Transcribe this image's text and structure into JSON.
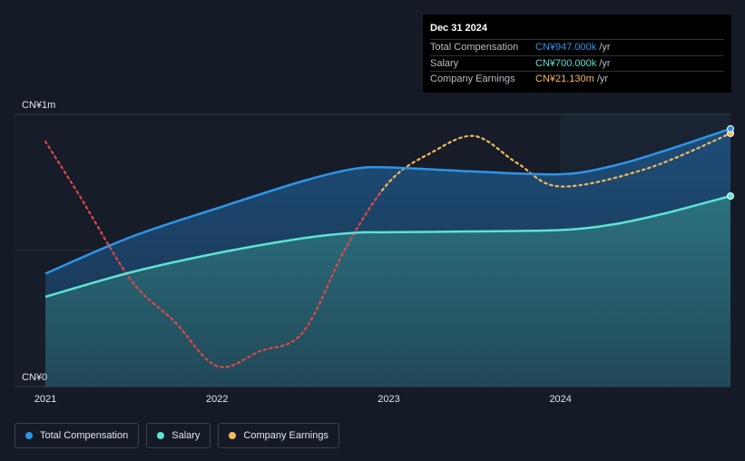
{
  "tooltip": {
    "date": "Dec 31 2024",
    "rows": [
      {
        "label": "Total Compensation",
        "value": "CN¥947.000k",
        "unit": "/yr",
        "color": "#2d95e8"
      },
      {
        "label": "Salary",
        "value": "CN¥700.000k",
        "unit": "/yr",
        "color": "#5ce3d4"
      },
      {
        "label": "Company Earnings",
        "value": "CN¥21.130m",
        "unit": "/yr",
        "color": "#f5b95a"
      }
    ]
  },
  "legend": [
    {
      "label": "Total Compensation",
      "color": "#2d95e8"
    },
    {
      "label": "Salary",
      "color": "#5ce3d4"
    },
    {
      "label": "Company Earnings",
      "color": "#f5b95a"
    }
  ],
  "chart_data": {
    "type": "line",
    "y_ticks": [
      {
        "value": 1000,
        "label": "CN¥1m"
      },
      {
        "value": 0,
        "label": "CN¥0"
      }
    ],
    "x_ticks": [
      {
        "value": 2021.0,
        "label": "2021"
      },
      {
        "value": 2022.0,
        "label": "2022"
      },
      {
        "value": 2023.0,
        "label": "2023"
      },
      {
        "value": 2024.0,
        "label": "2024"
      }
    ],
    "xlim": [
      2020.82,
      2024.99
    ],
    "ylim": [
      0,
      1000
    ],
    "highlight_start": 2024.0,
    "series": [
      {
        "name": "Total Compensation",
        "color": "#2d95e8",
        "x": [
          2021.0,
          2021.5,
          2022.0,
          2022.5,
          2022.8,
          2023.0,
          2023.5,
          2024.0,
          2024.3,
          2024.6,
          2024.99
        ],
        "y": [
          415,
          550,
          655,
          755,
          800,
          805,
          790,
          780,
          810,
          865,
          947
        ]
      },
      {
        "name": "Salary",
        "color": "#5ce3d4",
        "x": [
          2021.0,
          2021.5,
          2022.0,
          2022.5,
          2022.8,
          2023.0,
          2023.5,
          2024.0,
          2024.3,
          2024.6,
          2024.99
        ],
        "y": [
          330,
          420,
          490,
          545,
          565,
          567,
          570,
          575,
          595,
          635,
          700
        ]
      },
      {
        "name": "Company Earnings",
        "unit": "m",
        "x": [
          2021.0,
          2021.2,
          2021.5,
          2021.75,
          2022.0,
          2022.25,
          2022.5,
          2022.75,
          2023.0,
          2023.25,
          2023.5,
          2023.75,
          2024.0,
          2024.5,
          2024.99
        ],
        "y": [
          900,
          700,
          390,
          240,
          75,
          130,
          200,
          510,
          750,
          860,
          920,
          820,
          735,
          800,
          930
        ],
        "segments": [
          {
            "from": 2021.0,
            "to": 2022.95,
            "color": "#e04848"
          },
          {
            "from": 2022.95,
            "to": 2024.99,
            "color": "#f5b95a"
          }
        ]
      }
    ]
  }
}
